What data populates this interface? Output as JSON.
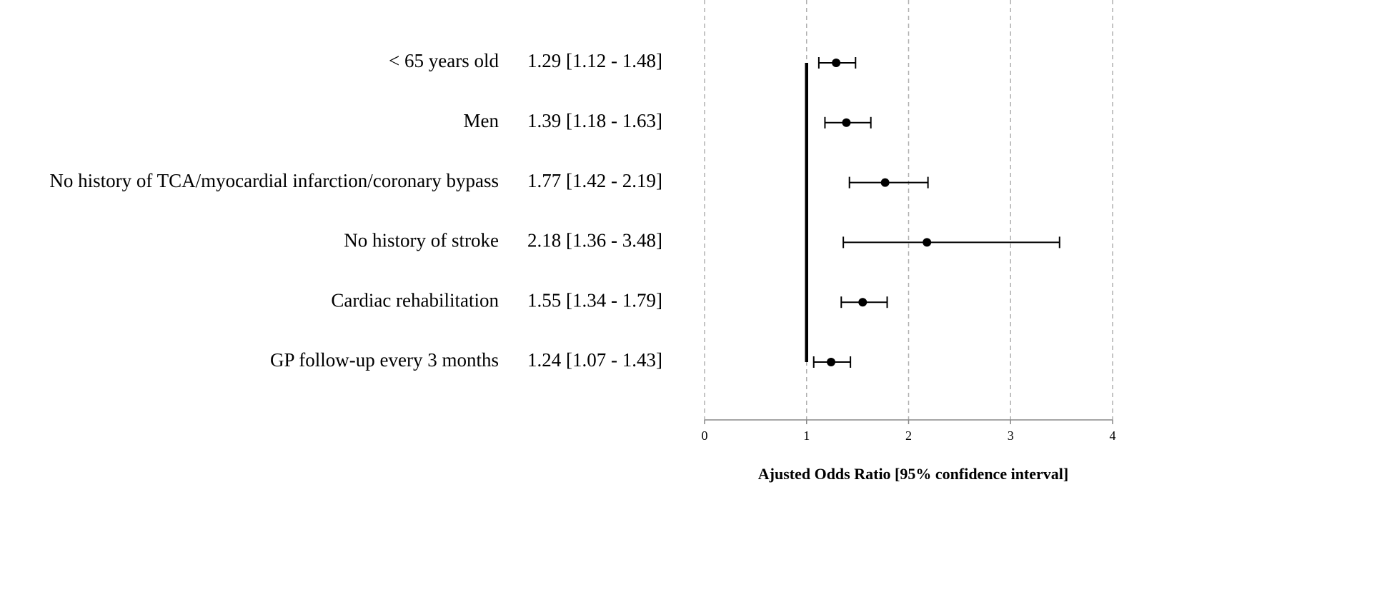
{
  "chart_data": {
    "type": "forest",
    "categories": [
      "< 65 years old",
      "Men",
      "No history of TCA/myocardial infarction/coronary bypass",
      "No history of stroke",
      "Cardiac rehabilitation",
      "GP follow-up every 3 months"
    ],
    "value_labels": [
      "1.29 [1.12 - 1.48]",
      "1.39 [1.18 - 1.63]",
      "1.77 [1.42 - 2.19]",
      "2.18 [1.36 - 3.48]",
      "1.55 [1.34 - 1.79]",
      "1.24 [1.07 - 1.43]"
    ],
    "values": [
      1.29,
      1.39,
      1.77,
      2.18,
      1.55,
      1.24
    ],
    "lower": [
      1.12,
      1.18,
      1.42,
      1.36,
      1.34,
      1.07
    ],
    "upper": [
      1.48,
      1.63,
      2.19,
      3.48,
      1.79,
      1.43
    ],
    "reference_line": 1,
    "xlim": [
      0,
      4
    ],
    "xticks": [
      0,
      1,
      2,
      3,
      4
    ],
    "xlabel": "Ajusted Odds Ratio [95% confidence interval]",
    "grid": true,
    "color": "#000000"
  }
}
